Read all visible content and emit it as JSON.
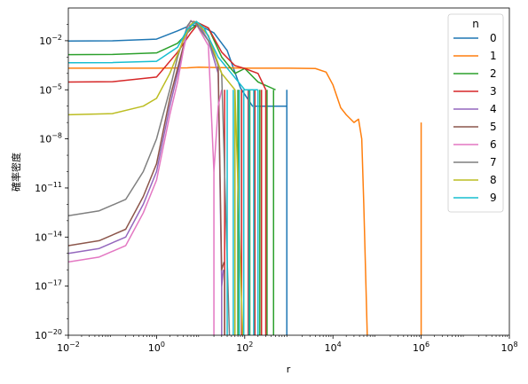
{
  "chart_data": {
    "type": "line",
    "xlabel": "r",
    "ylabel": "確率密度",
    "xscale": "log",
    "yscale": "log",
    "xlim": [
      0.01,
      100000000
    ],
    "ylim": [
      1e-20,
      1
    ],
    "x_ticks": [
      {
        "value": 0.01,
        "base": "10",
        "exp": "−2"
      },
      {
        "value": 1,
        "base": "10",
        "exp": "0"
      },
      {
        "value": 100,
        "base": "10",
        "exp": "2"
      },
      {
        "value": 10000,
        "base": "10",
        "exp": "4"
      },
      {
        "value": 1000000,
        "base": "10",
        "exp": "6"
      },
      {
        "value": 100000000,
        "base": "10",
        "exp": "8"
      }
    ],
    "y_ticks": [
      {
        "value": 0.01,
        "base": "10",
        "exp": "−2"
      },
      {
        "value": 1e-05,
        "base": "10",
        "exp": "−5"
      },
      {
        "value": 1e-08,
        "base": "10",
        "exp": "−8"
      },
      {
        "value": 1e-11,
        "base": "10",
        "exp": "−11"
      },
      {
        "value": 1e-14,
        "base": "10",
        "exp": "−14"
      },
      {
        "value": 1e-17,
        "base": "10",
        "exp": "−17"
      },
      {
        "value": 1e-20,
        "base": "10",
        "exp": "−20"
      }
    ],
    "legend": {
      "title": "n",
      "position": "upper right"
    },
    "grid": false,
    "series": [
      {
        "name": "0",
        "color": "#1f77b4",
        "points": [
          [
            0.01,
            0.0095
          ],
          [
            0.1,
            0.0098
          ],
          [
            1,
            0.0125
          ],
          [
            3,
            0.04
          ],
          [
            6,
            0.09
          ],
          [
            10,
            0.08
          ],
          [
            20,
            0.03
          ],
          [
            40,
            0.0025
          ],
          [
            80,
            1.3e-05
          ],
          [
            150,
            1e-06
          ],
          [
            300,
            1e-06
          ],
          [
            500,
            1e-06
          ],
          [
            900,
            1e-06
          ]
        ],
        "drops": [
          [
            900,
            1e-05
          ]
        ]
      },
      {
        "name": "1",
        "color": "#ff7f0e",
        "points": [
          [
            0.01,
            0.00021
          ],
          [
            0.1,
            0.00021
          ],
          [
            1,
            0.00021
          ],
          [
            5,
            0.00022
          ],
          [
            9,
            0.00024
          ],
          [
            100,
            0.00021
          ],
          [
            1000,
            0.00021
          ],
          [
            4000,
            0.0002
          ],
          [
            7000,
            0.00012
          ],
          [
            10000,
            2e-05
          ],
          [
            15000,
            8e-07
          ],
          [
            20000,
            3e-07
          ],
          [
            30000,
            1e-07
          ],
          [
            38000,
            1.6e-07
          ],
          [
            45000,
            1e-08
          ],
          [
            50000,
            1e-12
          ],
          [
            60000,
            1e-20
          ]
        ],
        "drops": [
          [
            1000000,
            1e-07
          ]
        ]
      },
      {
        "name": "2",
        "color": "#2ca02c",
        "points": [
          [
            0.01,
            0.0014
          ],
          [
            0.1,
            0.00145
          ],
          [
            1,
            0.0018
          ],
          [
            3,
            0.007
          ],
          [
            6,
            0.05
          ],
          [
            9,
            0.12
          ],
          [
            15,
            0.06
          ],
          [
            30,
            0.001
          ],
          [
            60,
            0.0001
          ],
          [
            100,
            0.0002
          ],
          [
            200,
            3e-05
          ],
          [
            500,
            1e-05
          ]
        ],
        "drops": [
          [
            70,
            1e-05
          ],
          [
            130,
            1e-05
          ],
          [
            220,
            1e-05
          ],
          [
            320,
            1e-05
          ],
          [
            450,
            1e-05
          ]
        ]
      },
      {
        "name": "3",
        "color": "#d62728",
        "points": [
          [
            0.01,
            3e-05
          ],
          [
            0.1,
            3.1e-05
          ],
          [
            1,
            6e-05
          ],
          [
            3,
            0.002
          ],
          [
            6,
            0.03
          ],
          [
            9,
            0.12
          ],
          [
            15,
            0.06
          ],
          [
            30,
            0.002
          ],
          [
            60,
            0.0003
          ],
          [
            100,
            0.0002
          ],
          [
            200,
            0.0001
          ],
          [
            300,
            1e-05
          ]
        ],
        "drops": [
          [
            35,
            1e-05
          ],
          [
            60,
            1e-05
          ],
          [
            85,
            1e-05
          ],
          [
            120,
            1e-05
          ],
          [
            170,
            1e-05
          ],
          [
            240,
            1e-05
          ],
          [
            300,
            1e-05
          ]
        ]
      },
      {
        "name": "4",
        "color": "#9467bd",
        "points": [
          [
            0.01,
            1e-15
          ],
          [
            0.05,
            2e-15
          ],
          [
            0.2,
            1e-14
          ],
          [
            0.5,
            1e-12
          ],
          [
            1,
            1e-10
          ],
          [
            2,
            1e-06
          ],
          [
            3,
            0.0001
          ],
          [
            5,
            0.03
          ],
          [
            7,
            0.15
          ],
          [
            9,
            0.1
          ],
          [
            15,
            0.01
          ],
          [
            25,
            0.0001
          ],
          [
            30,
            1e-17
          ],
          [
            33,
            1e-16
          ]
        ],
        "drops": [
          [
            30,
            1e-16
          ]
        ]
      },
      {
        "name": "5",
        "color": "#8c564b",
        "points": [
          [
            0.01,
            3e-15
          ],
          [
            0.05,
            6e-15
          ],
          [
            0.2,
            3e-14
          ],
          [
            0.5,
            3e-12
          ],
          [
            1,
            3e-10
          ],
          [
            2,
            3e-06
          ],
          [
            3,
            0.0002
          ],
          [
            5,
            0.04
          ],
          [
            7,
            0.15
          ],
          [
            9,
            0.1
          ],
          [
            15,
            0.02
          ],
          [
            25,
            0.0003
          ],
          [
            30,
            1e-16
          ],
          [
            34,
            3e-16
          ]
        ],
        "drops": [
          [
            35,
            1e-16
          ]
        ]
      },
      {
        "name": "6",
        "color": "#e377c2",
        "points": [
          [
            0.01,
            3e-16
          ],
          [
            0.05,
            6e-16
          ],
          [
            0.2,
            3e-15
          ],
          [
            0.5,
            3e-13
          ],
          [
            1,
            3e-11
          ],
          [
            2,
            3e-07
          ],
          [
            3,
            3e-05
          ],
          [
            5,
            0.06
          ],
          [
            6,
            0.17
          ],
          [
            8,
            0.1
          ],
          [
            15,
            0.005
          ],
          [
            20,
            1e-10
          ],
          [
            25,
            1e-06
          ],
          [
            30,
            1e-05
          ]
        ],
        "drops": [
          [
            20,
            1e-10
          ],
          [
            30,
            1e-20
          ]
        ]
      },
      {
        "name": "7",
        "color": "#7f7f7f",
        "points": [
          [
            0.01,
            2e-13
          ],
          [
            0.05,
            4e-13
          ],
          [
            0.2,
            2e-12
          ],
          [
            0.5,
            1e-10
          ],
          [
            1,
            1e-08
          ],
          [
            2,
            1e-05
          ],
          [
            3,
            0.001
          ],
          [
            5,
            0.08
          ],
          [
            6,
            0.16
          ],
          [
            8,
            0.1
          ],
          [
            15,
            0.01
          ],
          [
            30,
            0.0001
          ],
          [
            45,
            1e-20
          ]
        ],
        "drops": [
          [
            45,
            1e-20
          ]
        ]
      },
      {
        "name": "8",
        "color": "#bcbd22",
        "points": [
          [
            0.01,
            3e-07
          ],
          [
            0.1,
            3.5e-07
          ],
          [
            0.5,
            1e-06
          ],
          [
            1,
            3e-06
          ],
          [
            2,
            0.0001
          ],
          [
            4,
            0.01
          ],
          [
            6,
            0.1
          ],
          [
            8,
            0.15
          ],
          [
            15,
            0.02
          ],
          [
            30,
            0.0001
          ],
          [
            60,
            1e-05
          ],
          [
            90,
            1e-20
          ]
        ],
        "drops": [
          [
            60,
            1e-05
          ],
          [
            75,
            1e-05
          ],
          [
            90,
            1e-20
          ]
        ]
      },
      {
        "name": "9",
        "color": "#17becf",
        "points": [
          [
            0.01,
            0.00045
          ],
          [
            0.1,
            0.00046
          ],
          [
            1,
            0.00055
          ],
          [
            3,
            0.004
          ],
          [
            5,
            0.05
          ],
          [
            8,
            0.15
          ],
          [
            12,
            0.06
          ],
          [
            25,
            0.001
          ],
          [
            50,
            0.0001
          ],
          [
            100,
            1e-05
          ],
          [
            150,
            1e-05
          ],
          [
            200,
            1e-05
          ]
        ],
        "drops": [
          [
            40,
            1e-05
          ],
          [
            55,
            1e-05
          ],
          [
            75,
            1e-05
          ],
          [
            95,
            1e-05
          ],
          [
            125,
            1e-05
          ],
          [
            160,
            1e-05
          ],
          [
            200,
            1e-05
          ]
        ]
      }
    ]
  }
}
